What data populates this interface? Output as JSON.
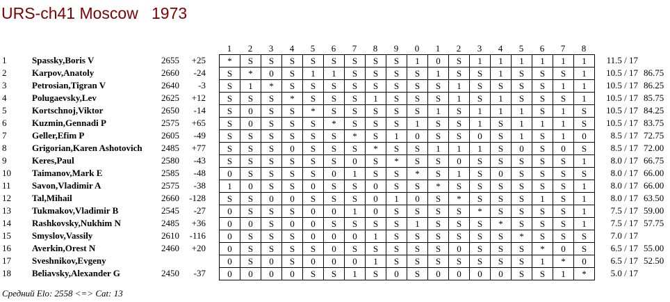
{
  "title": "URS-ch41 Moscow   1973",
  "column_headers": [
    "1",
    "2",
    "3",
    "4",
    "5",
    "6",
    "7",
    "8",
    "9",
    "0",
    "1",
    "2",
    "3",
    "4",
    "5",
    "6",
    "7",
    "8"
  ],
  "players": [
    {
      "rank": "1",
      "name": "Spassky,Boris V",
      "elo": "2655",
      "diff": "+25",
      "results": [
        "*",
        "S",
        "S",
        "S",
        "S",
        "S",
        "S",
        "S",
        "S",
        "1",
        "0",
        "S",
        "1",
        "1",
        "1",
        "1",
        "1",
        "1"
      ],
      "score": "11.5 / 17",
      "tiebreak": ""
    },
    {
      "rank": "2",
      "name": "Karpov,Anatoly",
      "elo": "2660",
      "diff": "-24",
      "results": [
        "S",
        "*",
        "0",
        "S",
        "1",
        "1",
        "S",
        "S",
        "S",
        "S",
        "1",
        "S",
        "S",
        "1",
        "S",
        "S",
        "S",
        "1"
      ],
      "score": "10.5 / 17",
      "tiebreak": "86.75"
    },
    {
      "rank": "3",
      "name": "Petrosian,Tigran V",
      "elo": "2640",
      "diff": "-3",
      "results": [
        "S",
        "1",
        "*",
        "S",
        "S",
        "S",
        "S",
        "S",
        "S",
        "S",
        "S",
        "1",
        "S",
        "S",
        "S",
        "S",
        "1",
        "1"
      ],
      "score": "10.5 / 17",
      "tiebreak": "86.25"
    },
    {
      "rank": "4",
      "name": "Polugaevsky,Lev",
      "elo": "2625",
      "diff": "+12",
      "results": [
        "S",
        "S",
        "S",
        "*",
        "S",
        "S",
        "S",
        "1",
        "S",
        "S",
        "S",
        "1",
        "S",
        "1",
        "S",
        "S",
        "S",
        "1"
      ],
      "score": "10.5 / 17",
      "tiebreak": "85.75"
    },
    {
      "rank": "5",
      "name": "Kortschnoj,Viktor",
      "elo": "2650",
      "diff": "-14",
      "results": [
        "S",
        "0",
        "S",
        "S",
        "*",
        "S",
        "S",
        "S",
        "S",
        "S",
        "1",
        "S",
        "1",
        "1",
        "1",
        "S",
        "1",
        "S"
      ],
      "score": "10.5 / 17",
      "tiebreak": "84.25"
    },
    {
      "rank": "6",
      "name": "Kuzmin,Gennadi P",
      "elo": "2575",
      "diff": "+65",
      "results": [
        "S",
        "0",
        "S",
        "S",
        "S",
        "*",
        "S",
        "S",
        "S",
        "1",
        "S",
        "S",
        "1",
        "S",
        "1",
        "1",
        "1",
        "S"
      ],
      "score": "10.5 / 17",
      "tiebreak": "83.75"
    },
    {
      "rank": "7",
      "name": "Geller,Efim P",
      "elo": "2605",
      "diff": "-49",
      "results": [
        "S",
        "S",
        "S",
        "S",
        "S",
        "S",
        "*",
        "S",
        "1",
        "0",
        "S",
        "S",
        "0",
        "S",
        "1",
        "S",
        "1",
        "0"
      ],
      "score": "8.5 / 17",
      "tiebreak": "72.75"
    },
    {
      "rank": "8",
      "name": "Grigorian,Karen Ashotovich",
      "elo": "2485",
      "diff": "+77",
      "results": [
        "S",
        "S",
        "S",
        "0",
        "S",
        "S",
        "S",
        "*",
        "S",
        "S",
        "1",
        "1",
        "1",
        "S",
        "0",
        "S",
        "0",
        "S"
      ],
      "score": "8.5 / 17",
      "tiebreak": "72.00"
    },
    {
      "rank": "9",
      "name": "Keres,Paul",
      "elo": "2580",
      "diff": "-43",
      "results": [
        "S",
        "S",
        "S",
        "S",
        "S",
        "S",
        "0",
        "S",
        "*",
        "S",
        "S",
        "0",
        "S",
        "S",
        "S",
        "S",
        "S",
        "1"
      ],
      "score": "8.0 / 17",
      "tiebreak": "66.75"
    },
    {
      "rank": "10",
      "name": "Taimanov,Mark E",
      "elo": "2585",
      "diff": "-48",
      "results": [
        "0",
        "S",
        "S",
        "S",
        "S",
        "0",
        "1",
        "S",
        "S",
        "*",
        "S",
        "1",
        "S",
        "0",
        "S",
        "S",
        "S",
        "S"
      ],
      "score": "8.0 / 17",
      "tiebreak": "66.00"
    },
    {
      "rank": "11",
      "name": "Savon,Vladimir A",
      "elo": "2575",
      "diff": "-38",
      "results": [
        "1",
        "0",
        "S",
        "S",
        "0",
        "S",
        "S",
        "0",
        "S",
        "S",
        "*",
        "S",
        "S",
        "S",
        "S",
        "S",
        "S",
        "1"
      ],
      "score": "8.0 / 17",
      "tiebreak": "66.00"
    },
    {
      "rank": "12",
      "name": "Tal,Mihail",
      "elo": "2660",
      "diff": "-128",
      "results": [
        "S",
        "S",
        "0",
        "0",
        "S",
        "S",
        "S",
        "0",
        "1",
        "0",
        "S",
        "*",
        "S",
        "S",
        "S",
        "1",
        "S",
        "1"
      ],
      "score": "8.0 / 17",
      "tiebreak": "63.50"
    },
    {
      "rank": "13",
      "name": "Tukmakov,Vladimir B",
      "elo": "2545",
      "diff": "-27",
      "results": [
        "0",
        "S",
        "S",
        "S",
        "0",
        "0",
        "1",
        "0",
        "S",
        "S",
        "S",
        "S",
        "*",
        "S",
        "S",
        "S",
        "S",
        "1"
      ],
      "score": "7.5 / 17",
      "tiebreak": "59.00"
    },
    {
      "rank": "14",
      "name": "Rashkovsky,Nukhim N",
      "elo": "2485",
      "diff": "+36",
      "results": [
        "0",
        "0",
        "S",
        "0",
        "0",
        "S",
        "S",
        "S",
        "S",
        "1",
        "S",
        "S",
        "S",
        "*",
        "S",
        "S",
        "S",
        "1"
      ],
      "score": "7.5 / 17",
      "tiebreak": "57.75"
    },
    {
      "rank": "15",
      "name": "Smyslov,Vassily",
      "elo": "2610",
      "diff": "-116",
      "results": [
        "0",
        "S",
        "S",
        "S",
        "0",
        "0",
        "0",
        "1",
        "S",
        "S",
        "S",
        "S",
        "S",
        "S",
        "*",
        "S",
        "S",
        "S"
      ],
      "score": "7.0 / 17",
      "tiebreak": ""
    },
    {
      "rank": "16",
      "name": "Averkin,Orest N",
      "elo": "2460",
      "diff": "+20",
      "results": [
        "0",
        "S",
        "S",
        "S",
        "S",
        "0",
        "S",
        "S",
        "S",
        "S",
        "S",
        "0",
        "S",
        "S",
        "S",
        "*",
        "0",
        "S"
      ],
      "score": "6.5 / 17",
      "tiebreak": "55.00"
    },
    {
      "rank": "17",
      "name": "Sveshnikov,Evgeny",
      "elo": "",
      "diff": "",
      "results": [
        "0",
        "S",
        "0",
        "S",
        "0",
        "0",
        "0",
        "1",
        "S",
        "S",
        "S",
        "S",
        "S",
        "S",
        "S",
        "1",
        "*",
        "0"
      ],
      "score": "6.5 / 17",
      "tiebreak": "52.50"
    },
    {
      "rank": "18",
      "name": "Beliavsky,Alexander G",
      "elo": "2450",
      "diff": "-37",
      "results": [
        "0",
        "0",
        "0",
        "0",
        "S",
        "S",
        "1",
        "S",
        "0",
        "S",
        "0",
        "0",
        "0",
        "0",
        "S",
        "S",
        "1",
        "*"
      ],
      "score": "5.0 / 17",
      "tiebreak": ""
    }
  ],
  "footer": "Средний Elo: 2558 <=> Cat: 13"
}
